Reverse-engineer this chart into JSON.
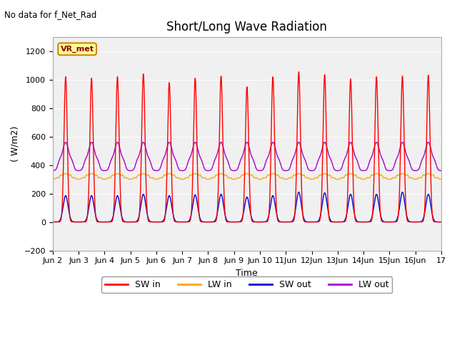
{
  "title": "Short/Long Wave Radiation",
  "top_left_text": "No data for f_Net_Rad",
  "xlabel": "Time",
  "ylabel": "( W/m2)",
  "ylim": [
    -200,
    1300
  ],
  "yticks": [
    -200,
    0,
    200,
    400,
    600,
    800,
    1000,
    1200
  ],
  "num_days": 15,
  "points_per_day": 144,
  "SW_in_color": "#ff0000",
  "LW_in_color": "#ffa500",
  "SW_out_color": "#0000cc",
  "LW_out_color": "#aa00cc",
  "legend_labels": [
    "SW in",
    "LW in",
    "SW out",
    "LW out"
  ],
  "annotation_text": "VR_met",
  "annotation_box_color": "#ffff99",
  "annotation_box_edge": "#cc8800",
  "title_fontsize": 12,
  "label_fontsize": 9,
  "tick_fontsize": 8,
  "fig_bg": "#ffffff",
  "plot_bg": "#f0f0f0",
  "grid_color": "#ffffff",
  "xtick_labels": [
    "Jun 2",
    "Jun 3",
    "Jun 4",
    "Jun 5",
    "Jun 6",
    "Jun 7",
    "Jun 8",
    "Jun 9",
    "Jun 10",
    "11Jun",
    "12Jun",
    "13Jun",
    "14Jun",
    "15Jun",
    "16Jun",
    "17"
  ],
  "sw_in_peaks": [
    1020,
    1010,
    1020,
    1040,
    980,
    1010,
    1025,
    950,
    1020,
    1055,
    1035,
    1005,
    1020,
    1025,
    1030
  ],
  "sw_out_peaks": [
    185,
    185,
    185,
    195,
    185,
    190,
    195,
    175,
    185,
    210,
    205,
    195,
    195,
    210,
    195
  ],
  "lw_in_base": 300,
  "lw_out_base": 360
}
